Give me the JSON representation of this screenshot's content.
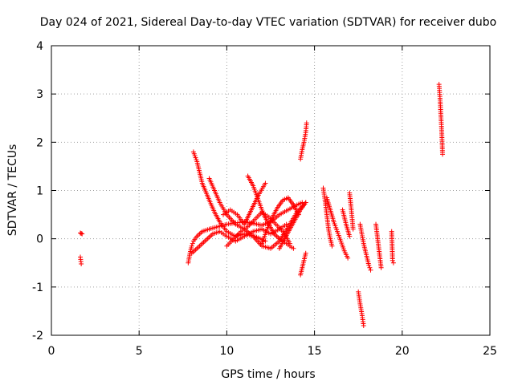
{
  "chart_data": {
    "type": "scatter",
    "title": "Day 024 of 2021, Sidereal Day-to-day VTEC variation (SDTVAR) for receiver dubo",
    "xlabel": "GPS time / hours",
    "ylabel": "SDTVAR / TECUs",
    "xlim": [
      0,
      25
    ],
    "ylim": [
      -2,
      4
    ],
    "xticks": [
      "0",
      "5",
      "10",
      "15",
      "20",
      "25"
    ],
    "yticks": [
      "-2",
      "-1",
      "0",
      "1",
      "2",
      "3",
      "4"
    ],
    "grid": true,
    "marker": "+",
    "color": "#ff0000",
    "tracks": [
      {
        "x": [
          1.65,
          1.7,
          1.75
        ],
        "y": [
          0.12,
          0.11,
          0.1
        ]
      },
      {
        "x": [
          1.65,
          1.7
        ],
        "y": [
          -0.38,
          -0.52
        ]
      },
      {
        "x": [
          7.8,
          7.9,
          8.0,
          8.1,
          8.3,
          8.6,
          9.0,
          9.5,
          10.0,
          10.5,
          11.0,
          11.5,
          12.0,
          12.5,
          13.0,
          13.5,
          14.0,
          14.3
        ],
        "y": [
          -0.5,
          -0.3,
          -0.15,
          -0.05,
          0.05,
          0.15,
          0.2,
          0.25,
          0.3,
          0.33,
          0.35,
          0.32,
          0.28,
          0.35,
          0.5,
          0.6,
          0.7,
          0.75
        ]
      },
      {
        "x": [
          8.0,
          8.3,
          8.6,
          8.9,
          9.2,
          9.6,
          10.0,
          10.5,
          11.0,
          11.5,
          12.0,
          12.5,
          13.0,
          13.4
        ],
        "y": [
          -0.3,
          -0.2,
          -0.1,
          0.0,
          0.1,
          0.15,
          0.05,
          -0.05,
          0.05,
          0.15,
          0.2,
          0.1,
          0.2,
          0.3
        ]
      },
      {
        "x": [
          8.1,
          8.3,
          8.6,
          9.0,
          9.3,
          9.6,
          10.0,
          10.5,
          11.0,
          11.6,
          12.2
        ],
        "y": [
          1.8,
          1.6,
          1.15,
          0.8,
          0.55,
          0.35,
          0.15,
          0.05,
          0.1,
          0.05,
          -0.05
        ]
      },
      {
        "x": [
          9.0,
          9.3,
          9.6,
          10.0,
          10.5,
          11.0,
          11.5,
          12.0,
          12.5,
          13.0,
          13.5,
          14.0,
          14.5
        ],
        "y": [
          1.25,
          1.0,
          0.75,
          0.5,
          0.3,
          0.2,
          0.05,
          -0.15,
          -0.2,
          -0.05,
          0.25,
          0.55,
          0.75
        ]
      },
      {
        "x": [
          9.8,
          10.2,
          10.6,
          11.0,
          11.4,
          11.8,
          12.2
        ],
        "y": [
          0.5,
          0.6,
          0.5,
          0.3,
          0.6,
          0.9,
          1.15
        ]
      },
      {
        "x": [
          10.0,
          10.4,
          10.8,
          11.2,
          11.6,
          12.0,
          12.4,
          12.8,
          13.2,
          13.6
        ],
        "y": [
          -0.15,
          0.0,
          0.15,
          0.25,
          0.4,
          0.55,
          0.45,
          0.3,
          0.15,
          -0.1
        ]
      },
      {
        "x": [
          11.2,
          11.5,
          11.8,
          12.1,
          12.4,
          12.7,
          13.0,
          13.4,
          13.8
        ],
        "y": [
          1.3,
          1.1,
          0.8,
          0.5,
          0.3,
          0.1,
          0.0,
          -0.1,
          -0.2
        ]
      },
      {
        "x": [
          12.0,
          12.3,
          12.6,
          12.9,
          13.2,
          13.5,
          13.8,
          14.1
        ],
        "y": [
          -0.1,
          0.2,
          0.45,
          0.65,
          0.8,
          0.85,
          0.7,
          0.5
        ]
      },
      {
        "x": [
          13.0,
          13.3,
          13.6,
          13.9,
          14.2,
          14.5
        ],
        "y": [
          -0.2,
          0.0,
          0.2,
          0.4,
          0.6,
          0.75
        ]
      },
      {
        "x": [
          14.2,
          14.3,
          14.4,
          14.5,
          14.55
        ],
        "y": [
          1.65,
          1.85,
          2.0,
          2.2,
          2.4
        ]
      },
      {
        "x": [
          14.2,
          14.3,
          14.4,
          14.5
        ],
        "y": [
          -0.75,
          -0.6,
          -0.45,
          -0.3
        ]
      },
      {
        "x": [
          15.5,
          15.6,
          15.7,
          15.8,
          15.9,
          16.0
        ],
        "y": [
          1.05,
          0.8,
          0.5,
          0.2,
          0.0,
          -0.15
        ]
      },
      {
        "x": [
          15.7,
          15.9,
          16.1,
          16.3,
          16.5,
          16.7,
          16.9
        ],
        "y": [
          0.85,
          0.6,
          0.35,
          0.15,
          -0.05,
          -0.25,
          -0.4
        ]
      },
      {
        "x": [
          16.6,
          16.8,
          17.0
        ],
        "y": [
          0.6,
          0.3,
          0.05
        ]
      },
      {
        "x": [
          17.0,
          17.1,
          17.2
        ],
        "y": [
          0.95,
          0.6,
          0.2
        ]
      },
      {
        "x": [
          17.6,
          17.7,
          17.8,
          17.9,
          18.0,
          18.1,
          18.2
        ],
        "y": [
          0.3,
          0.1,
          -0.1,
          -0.25,
          -0.4,
          -0.55,
          -0.65
        ]
      },
      {
        "x": [
          17.5,
          17.6,
          17.7,
          17.8
        ],
        "y": [
          -1.1,
          -1.35,
          -1.55,
          -1.8
        ]
      },
      {
        "x": [
          18.5,
          18.6,
          18.7,
          18.8
        ],
        "y": [
          0.3,
          0.0,
          -0.3,
          -0.6
        ]
      },
      {
        "x": [
          19.4,
          19.45,
          19.5
        ],
        "y": [
          0.15,
          -0.45,
          -0.5
        ]
      },
      {
        "x": [
          22.1,
          22.15,
          22.2,
          22.25,
          22.3
        ],
        "y": [
          3.2,
          2.95,
          2.6,
          2.25,
          1.75
        ]
      }
    ]
  }
}
